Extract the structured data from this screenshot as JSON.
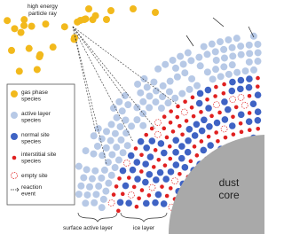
{
  "ray_label": [
    "high energy",
    "particle ray"
  ],
  "legend": [
    {
      "label": [
        "gas phase",
        "species"
      ]
    },
    {
      "label": [
        "active layer",
        "species"
      ]
    },
    {
      "label": [
        "normal site",
        "species"
      ]
    },
    {
      "label": [
        "interstitial site",
        "species"
      ]
    },
    {
      "label": [
        "empty site"
      ]
    },
    {
      "label": [
        "reaction",
        "event"
      ]
    }
  ],
  "core_label": [
    "dust",
    "core"
  ],
  "layer_labels": [
    "surface active layer",
    "ice layer"
  ]
}
